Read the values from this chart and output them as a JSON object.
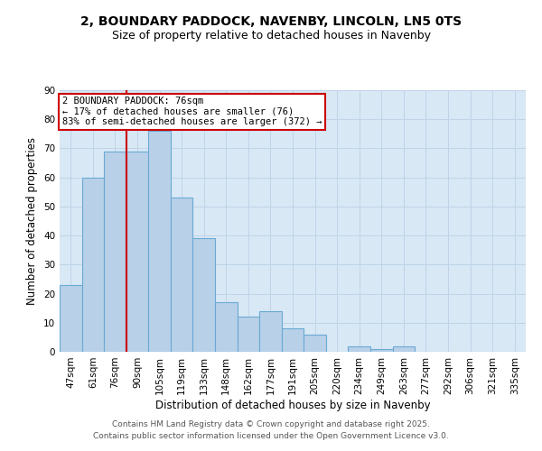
{
  "title1": "2, BOUNDARY PADDOCK, NAVENBY, LINCOLN, LN5 0TS",
  "title2": "Size of property relative to detached houses in Navenby",
  "xlabel": "Distribution of detached houses by size in Navenby",
  "ylabel": "Number of detached properties",
  "categories": [
    "47sqm",
    "61sqm",
    "76sqm",
    "90sqm",
    "105sqm",
    "119sqm",
    "133sqm",
    "148sqm",
    "162sqm",
    "177sqm",
    "191sqm",
    "205sqm",
    "220sqm",
    "234sqm",
    "249sqm",
    "263sqm",
    "277sqm",
    "292sqm",
    "306sqm",
    "321sqm",
    "335sqm"
  ],
  "values": [
    23,
    60,
    69,
    69,
    76,
    53,
    39,
    17,
    12,
    14,
    8,
    6,
    0,
    2,
    1,
    2,
    0,
    0,
    0,
    0,
    0
  ],
  "bar_color": "#b8d0e8",
  "bar_edge_color": "#6aaad4",
  "red_line_index": 2,
  "red_line_color": "#cc0000",
  "annotation_text": "2 BOUNDARY PADDOCK: 76sqm\n← 17% of detached houses are smaller (76)\n83% of semi-detached houses are larger (372) →",
  "annotation_box_facecolor": "#ffffff",
  "annotation_box_edgecolor": "#cc0000",
  "annotation_text_color": "#000000",
  "ylim": [
    0,
    90
  ],
  "yticks": [
    0,
    10,
    20,
    30,
    40,
    50,
    60,
    70,
    80,
    90
  ],
  "grid_color": "#c0d4e8",
  "background_color": "#d8e8f5",
  "footer1": "Contains HM Land Registry data © Crown copyright and database right 2025.",
  "footer2": "Contains public sector information licensed under the Open Government Licence v3.0.",
  "title1_fontsize": 10,
  "title2_fontsize": 9,
  "axis_label_fontsize": 8.5,
  "tick_fontsize": 7.5,
  "annotation_fontsize": 7.5,
  "footer_fontsize": 6.5
}
